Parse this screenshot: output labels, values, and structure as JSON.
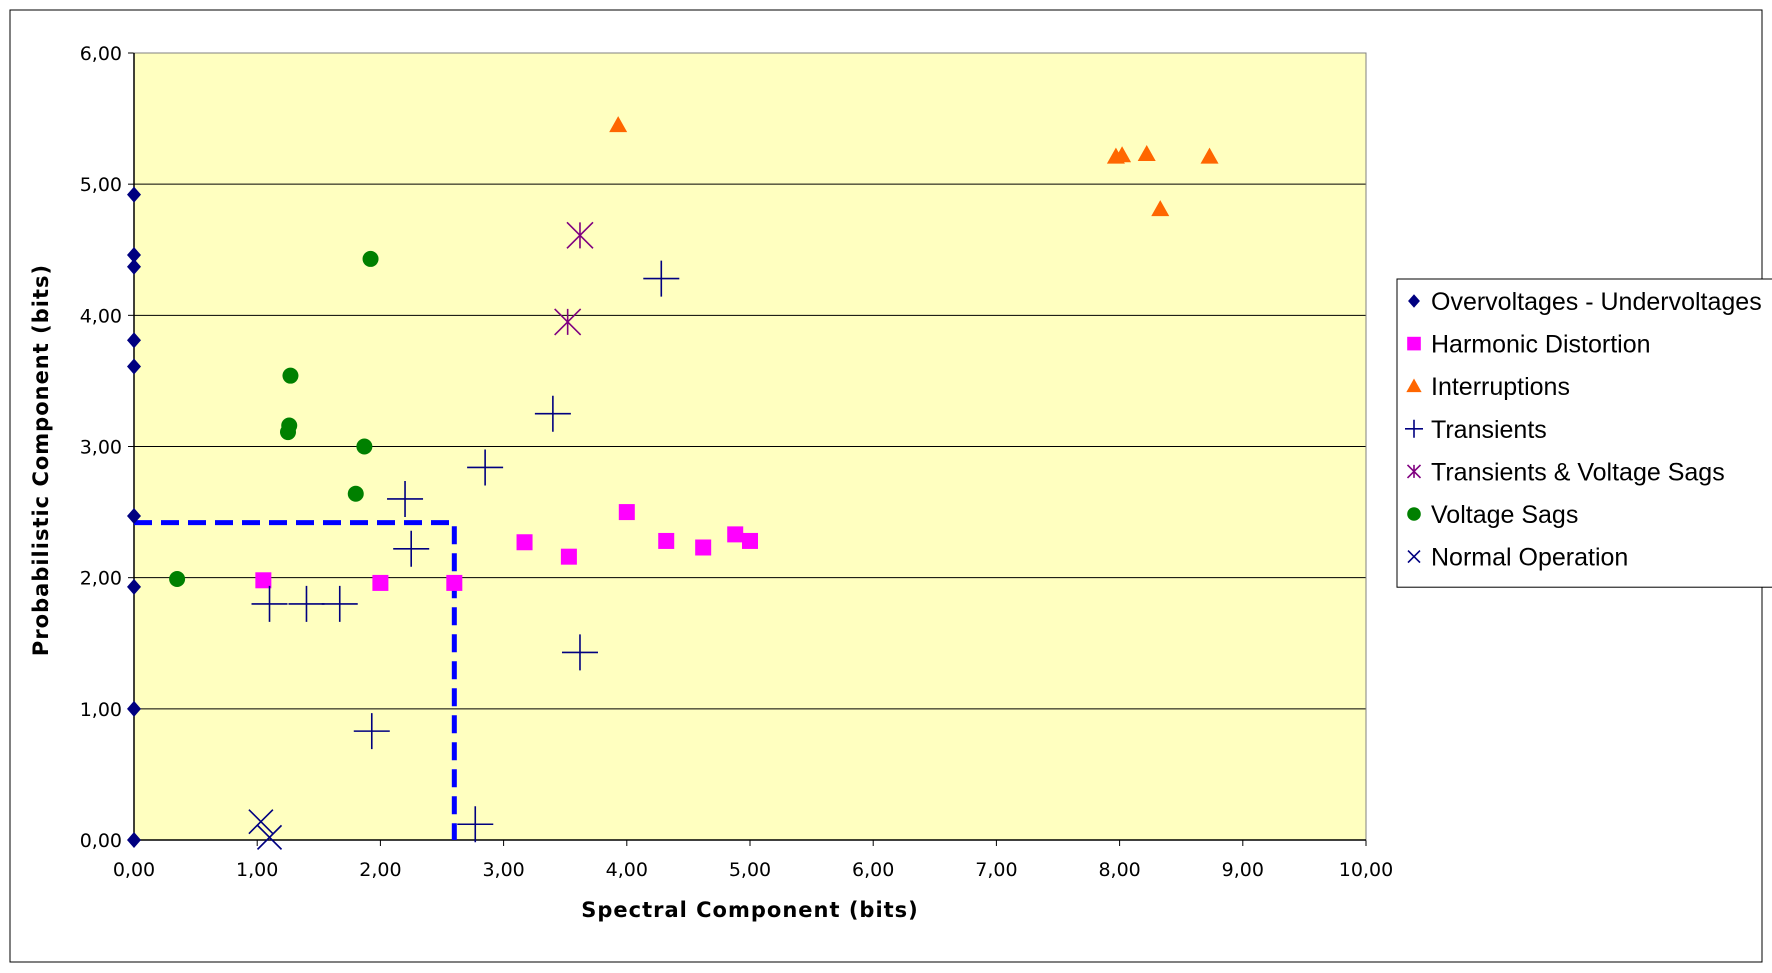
{
  "chart_data": {
    "type": "scatter",
    "title": "",
    "xlabel": "Spectral Component (bits)",
    "ylabel": "Probabilistic Component (bits)",
    "xlim": [
      0,
      10
    ],
    "ylim": [
      0,
      6
    ],
    "x_ticks": [
      "0,00",
      "1,00",
      "2,00",
      "3,00",
      "4,00",
      "5,00",
      "6,00",
      "7,00",
      "8,00",
      "9,00",
      "10,00"
    ],
    "y_ticks": [
      "0,00",
      "1,00",
      "2,00",
      "3,00",
      "4,00",
      "5,00",
      "6,00"
    ],
    "grid": "horizontal major gridlines",
    "plot_background": "#ffffc0",
    "legend_position": "right",
    "series": [
      {
        "name": "Overvoltages - Undervoltages",
        "marker": "diamond",
        "color": "#000080",
        "points": [
          [
            0,
            4.92
          ],
          [
            0,
            4.46
          ],
          [
            0,
            4.37
          ],
          [
            0,
            3.81
          ],
          [
            0,
            3.61
          ],
          [
            0,
            2.47
          ],
          [
            0,
            1.93
          ],
          [
            0,
            1.0
          ],
          [
            0,
            0.0
          ]
        ]
      },
      {
        "name": "Harmonic Distortion",
        "marker": "square",
        "color": "#ff00ff",
        "points": [
          [
            1.05,
            1.98
          ],
          [
            2.0,
            1.96
          ],
          [
            2.6,
            1.96
          ],
          [
            3.17,
            2.27
          ],
          [
            3.53,
            2.16
          ],
          [
            4.0,
            2.5
          ],
          [
            4.32,
            2.28
          ],
          [
            4.62,
            2.23
          ],
          [
            4.88,
            2.33
          ],
          [
            5.0,
            2.28
          ]
        ]
      },
      {
        "name": "Interruptions",
        "marker": "triangle",
        "color": "#ff6600",
        "points": [
          [
            3.93,
            5.45
          ],
          [
            7.97,
            5.21
          ],
          [
            8.02,
            5.22
          ],
          [
            8.22,
            5.23
          ],
          [
            8.33,
            4.81
          ],
          [
            8.73,
            5.21
          ]
        ]
      },
      {
        "name": "Transients",
        "marker": "plus",
        "color": "#000080",
        "points": [
          [
            1.1,
            1.8
          ],
          [
            1.4,
            1.8
          ],
          [
            1.67,
            1.8
          ],
          [
            1.93,
            0.83
          ],
          [
            2.2,
            2.6
          ],
          [
            2.25,
            2.22
          ],
          [
            2.77,
            0.12
          ],
          [
            2.85,
            2.84
          ],
          [
            3.4,
            3.25
          ],
          [
            3.62,
            1.43
          ],
          [
            4.28,
            4.28
          ]
        ]
      },
      {
        "name": "Transients & Voltage Sags",
        "marker": "asterisk",
        "color": "#800080",
        "points": [
          [
            3.62,
            4.61
          ],
          [
            3.52,
            3.95
          ]
        ]
      },
      {
        "name": "Voltage Sags",
        "marker": "circle",
        "color": "#008000",
        "points": [
          [
            0.35,
            1.99
          ],
          [
            1.25,
            3.11
          ],
          [
            1.26,
            3.16
          ],
          [
            1.27,
            3.54
          ],
          [
            1.8,
            2.64
          ],
          [
            1.87,
            3.0
          ],
          [
            1.92,
            4.43
          ]
        ]
      },
      {
        "name": "Normal Operation",
        "marker": "x",
        "color": "#000080",
        "points": [
          [
            1.03,
            0.14
          ],
          [
            1.1,
            0.02
          ]
        ]
      }
    ],
    "annotations": [
      {
        "type": "dashed-box",
        "color": "#0000ff",
        "x": [
          0,
          2.6
        ],
        "y": [
          0,
          2.42
        ]
      }
    ]
  }
}
